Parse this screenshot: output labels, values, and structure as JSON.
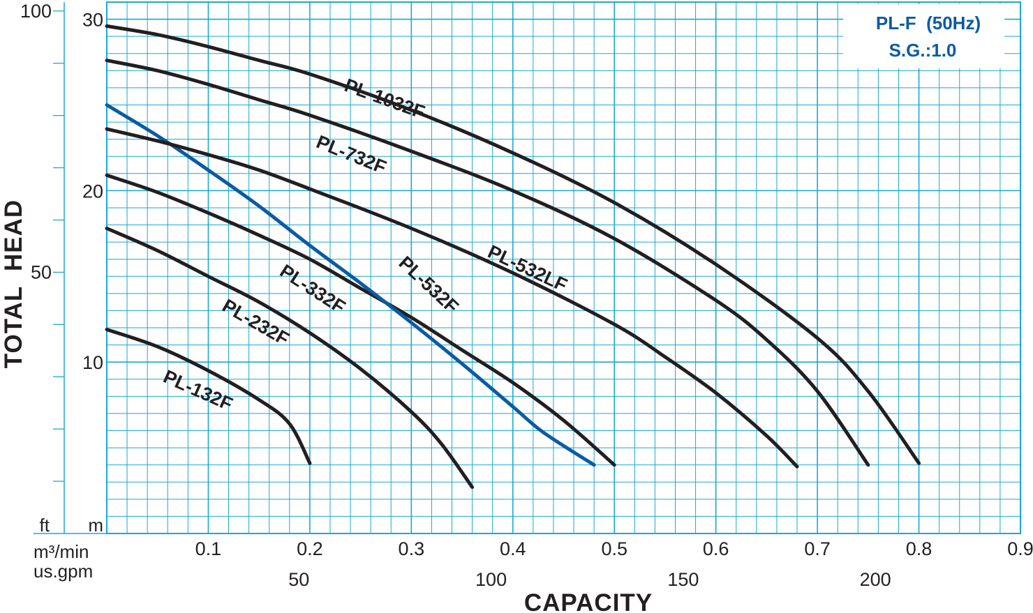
{
  "chart_data": {
    "type": "line",
    "title": "PL-F  (50Hz)",
    "subtitle": "S.G.:1.0",
    "xlabel": "CAPACITY",
    "ylabel": "TOTAL  HEAD",
    "x_unit_primary": "m³/min",
    "x_unit_secondary": "us.gpm",
    "y_unit_primary": "m",
    "y_unit_secondary": "ft",
    "xlim": [
      0,
      0.9
    ],
    "ylim": [
      0,
      30
    ],
    "grid": true,
    "x_ticks": [
      {
        "value": 0.1,
        "label": "0.1"
      },
      {
        "value": 0.2,
        "label": "0.2"
      },
      {
        "value": 0.3,
        "label": "0.3"
      },
      {
        "value": 0.4,
        "label": "0.4"
      },
      {
        "value": 0.5,
        "label": "0.5"
      },
      {
        "value": 0.6,
        "label": "0.6"
      },
      {
        "value": 0.7,
        "label": "0.7"
      },
      {
        "value": 0.8,
        "label": "0.8"
      },
      {
        "value": 0.9,
        "label": "0.9"
      }
    ],
    "x_ticks_gpm": [
      {
        "value": 50,
        "label": "50"
      },
      {
        "value": 100,
        "label": "100"
      },
      {
        "value": 150,
        "label": "150"
      },
      {
        "value": 200,
        "label": "200"
      }
    ],
    "y_ticks_m": [
      {
        "value": 10,
        "label": "10"
      },
      {
        "value": 20,
        "label": "20"
      },
      {
        "value": 30,
        "label": "30"
      }
    ],
    "y_ticks_ft": [
      {
        "value": 50,
        "label": "50"
      },
      {
        "value": 100,
        "label": "100"
      }
    ],
    "series": [
      {
        "name": "PL-132F",
        "color": "#231f20",
        "x": [
          0.0,
          0.05,
          0.1,
          0.15,
          0.18,
          0.2
        ],
        "y": [
          11.9,
          10.9,
          9.5,
          7.8,
          6.4,
          4.1
        ]
      },
      {
        "name": "PL-232F",
        "color": "#231f20",
        "x": [
          0.0,
          0.05,
          0.1,
          0.15,
          0.2,
          0.25,
          0.3,
          0.33,
          0.36
        ],
        "y": [
          17.8,
          16.5,
          15.0,
          13.5,
          11.7,
          9.6,
          7.1,
          5.2,
          2.7
        ]
      },
      {
        "name": "PL-332F",
        "color": "#231f20",
        "x": [
          0.0,
          0.05,
          0.1,
          0.15,
          0.2,
          0.25,
          0.3,
          0.35,
          0.4,
          0.45,
          0.5
        ],
        "y": [
          20.9,
          19.9,
          18.7,
          17.4,
          16.0,
          14.3,
          12.6,
          10.7,
          8.8,
          6.6,
          4.0
        ]
      },
      {
        "name": "PL-532F",
        "color": "#0a5ba3",
        "x": [
          0.0,
          0.05,
          0.1,
          0.15,
          0.2,
          0.25,
          0.3,
          0.35,
          0.4,
          0.43,
          0.48
        ],
        "y": [
          25.0,
          23.2,
          21.2,
          19.1,
          16.8,
          14.6,
          12.3,
          9.9,
          7.4,
          5.9,
          4.0
        ]
      },
      {
        "name": "PL-532LF",
        "color": "#231f20",
        "x": [
          0.0,
          0.05,
          0.1,
          0.15,
          0.2,
          0.3,
          0.4,
          0.5,
          0.55,
          0.6,
          0.65,
          0.68
        ],
        "y": [
          23.6,
          22.9,
          22.1,
          21.2,
          20.1,
          17.8,
          15.2,
          12.2,
          10.3,
          8.2,
          5.7,
          3.9
        ]
      },
      {
        "name": "PL-732F",
        "color": "#231f20",
        "x": [
          0.0,
          0.05,
          0.1,
          0.15,
          0.2,
          0.3,
          0.4,
          0.5,
          0.6,
          0.65,
          0.7,
          0.75
        ],
        "y": [
          27.6,
          27.0,
          26.2,
          25.3,
          24.4,
          22.3,
          20.0,
          17.2,
          13.6,
          11.3,
          8.3,
          4.0
        ]
      },
      {
        "name": "PL-1032F",
        "color": "#231f20",
        "x": [
          0.0,
          0.05,
          0.1,
          0.15,
          0.2,
          0.3,
          0.4,
          0.5,
          0.6,
          0.7,
          0.75,
          0.8
        ],
        "y": [
          29.6,
          29.1,
          28.4,
          27.6,
          26.8,
          24.7,
          22.2,
          19.3,
          15.7,
          11.4,
          8.3,
          4.1
        ]
      }
    ]
  }
}
